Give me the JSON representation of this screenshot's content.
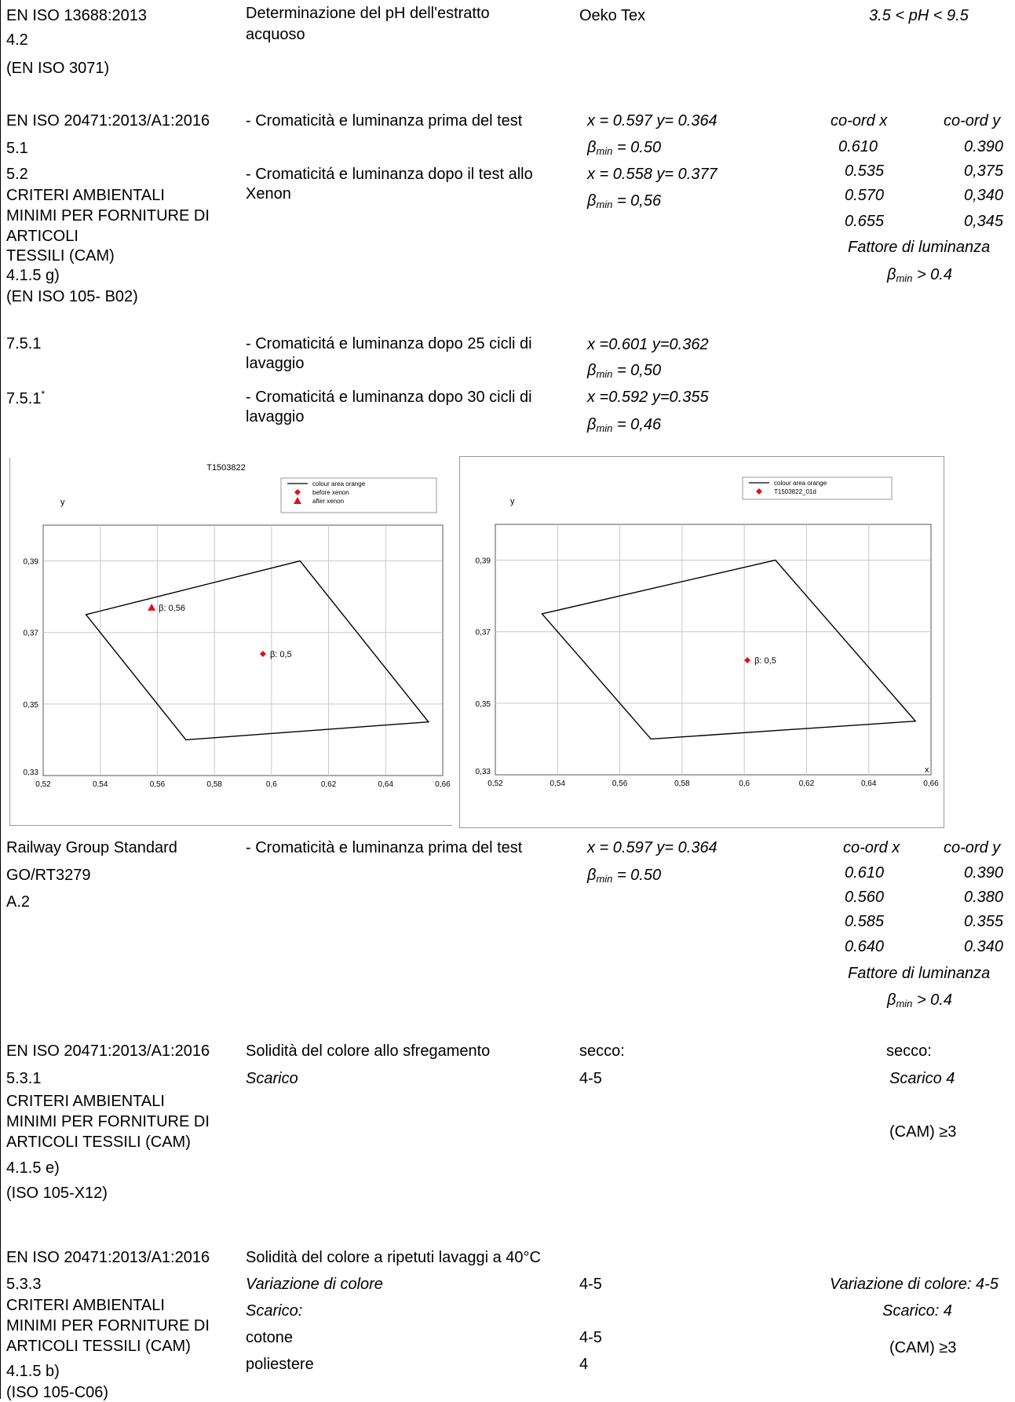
{
  "section1": {
    "standard_lines": [
      "EN ISO 13688:2013",
      "4.2",
      "(EN ISO 3071)"
    ],
    "test_lines": [
      "Determinazione del pH dell'estratto",
      "acquoso"
    ],
    "result": "Oeko Tex",
    "requirement": "3.5 < pH < 9.5"
  },
  "section2": {
    "std_a": "EN ISO 20471:2013/A1:2016",
    "std_b": "5.1",
    "std_c": "5.2",
    "std_d": [
      "CRITERI AMBIENTALI",
      "MINIMI PER FORNITURE DI",
      "ARTICOLI",
      "TESSILI (CAM)",
      "4.1.5 g)",
      "(EN ISO 105- B02)"
    ],
    "test_before": "- Cromaticità e luminanza prima del test",
    "test_after_lines": [
      "- Cromaticitá e luminanza  dopo il test  allo",
      "Xenon"
    ],
    "res_before_xy": "x = 0.597  y= 0.364",
    "res_before_beta_label": "β",
    "res_before_beta_sub": "min",
    "res_before_beta_val": " = 0.50",
    "res_after_xy": "x = 0.558  y= 0.377",
    "res_after_beta_label": "β",
    "res_after_beta_sub": "min",
    "res_after_beta_val": " = 0,56",
    "req_head_x": "co-ord x",
    "req_head_y": "co-ord y",
    "req_rows": [
      {
        "x": "0.610",
        "y": "0.390"
      },
      {
        "x": "0.535",
        "y": "0,375"
      },
      {
        "x": "0.570",
        "y": "0,340"
      },
      {
        "x": "0.655",
        "y": "0,345"
      }
    ],
    "req_factor": "Fattore di luminanza",
    "req_beta_label": "β",
    "req_beta_sub": "min",
    "req_beta_val": " > 0.4"
  },
  "section3": {
    "std_1": "7.5.1",
    "std_2": "7.5.1",
    "std_2_sup": "*",
    "test_25_lines": [
      "- Cromaticitá e luminanza  dopo 25 cicli di",
      "lavaggio"
    ],
    "test_30_lines": [
      "- Cromaticitá e luminanza  dopo 30 cicli di",
      "lavaggio"
    ],
    "res_25_xy": "x =0.601   y=0.362",
    "res_25_beta_label": "β",
    "res_25_beta_sub": "min",
    "res_25_beta_val": " = 0,50",
    "res_30_xy": "x =0.592   y=0.355",
    "res_30_beta_label": "β",
    "res_30_beta_sub": "min",
    "res_30_beta_val": " = 0,46"
  },
  "chart_data": [
    {
      "type": "scatter",
      "title": "T1503822",
      "xlabel": "",
      "ylabel": "y",
      "xlim": [
        0.52,
        0.66
      ],
      "ylim": [
        0.33,
        0.4
      ],
      "x_ticks": [
        0.52,
        0.54,
        0.56,
        0.58,
        0.6,
        0.62,
        0.64,
        0.66
      ],
      "x_tick_labels": [
        "0,52",
        "0,54",
        "0,56",
        "0,58",
        "0,6",
        "0,62",
        "0,64",
        "0,66"
      ],
      "y_ticks": [
        0.33,
        0.35,
        0.37,
        0.39
      ],
      "y_tick_labels": [
        "0,33",
        "0,35",
        "0,37",
        "0,39"
      ],
      "grid": true,
      "legend_position": "top-right",
      "series": [
        {
          "name": "colour area orange",
          "kind": "polygon",
          "color": "#000000",
          "points": [
            [
              0.535,
              0.375
            ],
            [
              0.61,
              0.39
            ],
            [
              0.655,
              0.345
            ],
            [
              0.57,
              0.34
            ]
          ]
        },
        {
          "name": "before xenon",
          "kind": "marker",
          "marker": "diamond",
          "color": "#e0101a",
          "points": [
            [
              0.597,
              0.364
            ]
          ],
          "labels": [
            "β: 0,5"
          ]
        },
        {
          "name": "after xenon",
          "kind": "marker",
          "marker": "triangle",
          "color": "#e0101a",
          "points": [
            [
              0.558,
              0.377
            ]
          ],
          "labels": [
            "β: 0,56"
          ]
        }
      ]
    },
    {
      "type": "scatter",
      "title": "",
      "xlabel": "x",
      "ylabel": "y",
      "xlim": [
        0.52,
        0.66
      ],
      "ylim": [
        0.33,
        0.4
      ],
      "x_ticks": [
        0.52,
        0.54,
        0.56,
        0.58,
        0.6,
        0.62,
        0.64,
        0.66
      ],
      "x_tick_labels": [
        "0,52",
        "0,54",
        "0,56",
        "0,58",
        "0,6",
        "0,62",
        "0,64",
        "0,66"
      ],
      "y_ticks": [
        0.33,
        0.35,
        0.37,
        0.39
      ],
      "y_tick_labels": [
        "0,33",
        "0,35",
        "0,37",
        "0,39"
      ],
      "grid": true,
      "legend_position": "top-right",
      "series": [
        {
          "name": "colour area orange",
          "kind": "polygon",
          "color": "#000000",
          "points": [
            [
              0.535,
              0.375
            ],
            [
              0.61,
              0.39
            ],
            [
              0.655,
              0.345
            ],
            [
              0.57,
              0.34
            ]
          ]
        },
        {
          "name": "T1503822_01d",
          "kind": "marker",
          "marker": "diamond",
          "color": "#e0101a",
          "points": [
            [
              0.601,
              0.362
            ]
          ],
          "labels": [
            "β: 0,5"
          ]
        }
      ]
    }
  ],
  "section4": {
    "std_lines": [
      "Railway Group Standard",
      "GO/RT3279",
      "A.2"
    ],
    "test": "- Cromaticità e luminanza prima del test",
    "res_xy": "x = 0.597  y= 0.364",
    "res_beta_label": "β",
    "res_beta_sub": "min",
    "res_beta_val": " = 0.50",
    "req_head_x": "co-ord x",
    "req_head_y": "co-ord y",
    "req_rows": [
      {
        "x": "0.610",
        "y": "0.390"
      },
      {
        "x": "0.560",
        "y": "0.380"
      },
      {
        "x": "0.585",
        "y": "0.355"
      },
      {
        "x": "0.640",
        "y": "0.340"
      }
    ],
    "req_factor": "Fattore di luminanza",
    "req_beta_label": "β",
    "req_beta_sub": "min",
    "req_beta_val": " > 0.4"
  },
  "section5": {
    "std_a": "EN ISO 20471:2013/A1:2016",
    "std_b": " 5.3.1",
    "std_c": [
      "CRITERI AMBIENTALI",
      "MINIMI PER FORNITURE DI",
      "ARTICOLI TESSILI (CAM)"
    ],
    "std_d": "4.1.5 e)",
    "std_e": "(ISO 105-X12)",
    "test_title": "Solidità del colore allo sfregamento",
    "test_sub": "Scarico",
    "res_label": "secco:",
    "res_val": "4-5",
    "req_label": "secco:",
    "req_val": "Scarico 4",
    "req_cam": "(CAM) ≥3"
  },
  "section6": {
    "std_a": "EN ISO 20471:2013/A1:2016",
    "std_b": " 5.3.3",
    "std_c": [
      "CRITERI AMBIENTALI",
      "MINIMI PER FORNITURE DI",
      "ARTICOLI TESSILI (CAM)"
    ],
    "std_d": "4.1.5 b)",
    "std_e": "(ISO 105-C06)",
    "test_title": "Solidità del colore a ripetuti lavaggi a 40°C",
    "test_var": "Variazione di colore",
    "test_scarico": "Scarico:",
    "test_cotone": "cotone",
    "test_poliestere": "poliestere",
    "res_var": "4-5",
    "res_cotone": "4-5",
    "res_poliestere": "4",
    "req_var": "Variazione di colore: 4-5",
    "req_scarico": "Scarico: 4",
    "req_cam": "(CAM) ≥3"
  }
}
